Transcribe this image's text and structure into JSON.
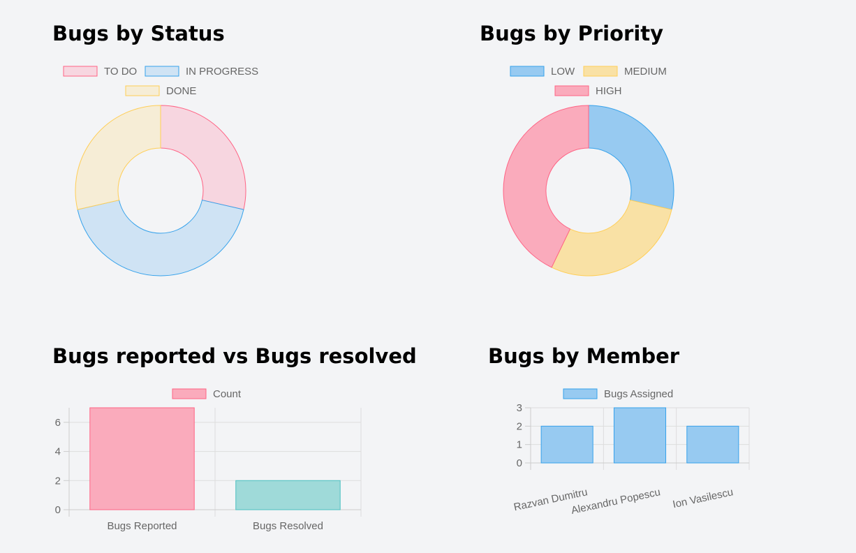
{
  "chart_data": [
    {
      "type": "pie",
      "style": "doughnut",
      "title": "Bugs by Status",
      "labels": [
        "TO DO",
        "IN PROGRESS",
        "DONE"
      ],
      "values": [
        2,
        3,
        2
      ],
      "fill_colors": [
        "#f7d6e0",
        "#cfe3f4",
        "#f6edd6"
      ],
      "border_colors": [
        "#ff6384",
        "#36a2eb",
        "#ffce56"
      ],
      "legend": "top"
    },
    {
      "type": "pie",
      "style": "doughnut",
      "title": "Bugs by Priority",
      "labels": [
        "LOW",
        "MEDIUM",
        "HIGH"
      ],
      "values": [
        2,
        2,
        3
      ],
      "fill_colors": [
        "#97caf1",
        "#f9e1a5",
        "#faabbc"
      ],
      "border_colors": [
        "#36a2eb",
        "#ffce56",
        "#ff6384"
      ],
      "legend": "top"
    },
    {
      "type": "bar",
      "title": "Bugs reported vs Bugs resolved",
      "categories": [
        "Bugs Reported",
        "Bugs Resolved"
      ],
      "series": [
        {
          "name": "Count",
          "values": [
            7,
            2
          ]
        }
      ],
      "bar_fill_colors": [
        "#faabbc",
        "#9fdad9"
      ],
      "bar_border_colors": [
        "#ff6384",
        "#4bc0c0"
      ],
      "legend_fill": "#faabbc",
      "legend_border": "#ff6384",
      "ylim": [
        0,
        7
      ],
      "yticks": [
        0,
        2,
        4,
        6
      ],
      "grid": true,
      "legend": "top"
    },
    {
      "type": "bar",
      "title": "Bugs by Member",
      "categories": [
        "Razvan Dumitru",
        "Alexandru Popescu",
        "Ion Vasilescu"
      ],
      "series": [
        {
          "name": "Bugs Assigned",
          "values": [
            2,
            3,
            2
          ]
        }
      ],
      "bar_fill_colors": [
        "#97caf1",
        "#97caf1",
        "#97caf1"
      ],
      "bar_border_colors": [
        "#36a2eb",
        "#36a2eb",
        "#36a2eb"
      ],
      "legend_fill": "#97caf1",
      "legend_border": "#36a2eb",
      "ylim": [
        0,
        3
      ],
      "yticks": [
        0,
        1,
        2,
        3
      ],
      "grid": true,
      "legend": "top"
    }
  ]
}
